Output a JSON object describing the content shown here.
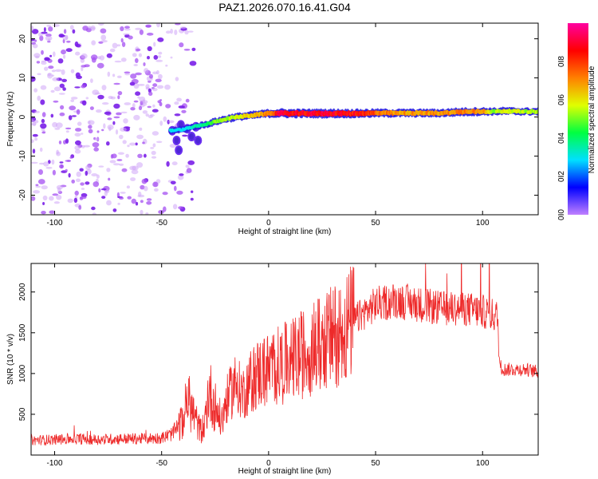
{
  "title": "PAZ1.2026.070.16.41.G04",
  "chart_data": [
    {
      "type": "heatmap",
      "name": "spectrogram",
      "xlabel": "Height of straight line (km)",
      "ylabel": "Frequency (Hz)",
      "xlim": [
        -111,
        126
      ],
      "ylim": [
        -25,
        24
      ],
      "xticks": [
        -100,
        -50,
        0,
        50,
        100
      ],
      "yticks": [
        -20,
        -10,
        0,
        10,
        20
      ],
      "colorbar": {
        "label": "Normalized spectral amplitude",
        "range": [
          0,
          1
        ],
        "ticks": [
          0.0,
          0.2,
          0.4,
          0.6,
          0.8
        ],
        "colormap": [
          "#c080ff",
          "#0000ff",
          "#00e0ff",
          "#00ff40",
          "#e0ff00",
          "#ff8000",
          "#ff0000",
          "#ff00a0"
        ]
      },
      "noise_region_km": [
        -111,
        -35
      ],
      "signal_track": {
        "x": [
          -46,
          -40,
          -35,
          -30,
          -25,
          -20,
          -15,
          -10,
          -5,
          0,
          5,
          10,
          20,
          30,
          40,
          50,
          60,
          70,
          80,
          90,
          100,
          105,
          110,
          120,
          126
        ],
        "freq": [
          -3.5,
          -3.2,
          -2.5,
          -2,
          -1.2,
          -0.5,
          0,
          0.3,
          0.6,
          0.9,
          1,
          0.9,
          0.9,
          0.9,
          0.9,
          1,
          1,
          1,
          1,
          1.3,
          1.4,
          1.4,
          1.5,
          1.4,
          1.4
        ],
        "amp": [
          0.2,
          0.18,
          0.25,
          0.3,
          0.45,
          0.5,
          0.55,
          0.6,
          0.65,
          0.75,
          0.95,
          0.95,
          0.95,
          0.95,
          0.9,
          0.8,
          0.7,
          0.72,
          0.7,
          0.75,
          0.75,
          0.45,
          0.6,
          0.5,
          0.5
        ]
      },
      "grid": false
    },
    {
      "type": "line",
      "name": "snr",
      "xlabel": "Height of straight line (km)",
      "ylabel": "SNR (10 * v/v)",
      "xlim": [
        -111,
        126
      ],
      "ylim": [
        0,
        2350
      ],
      "xticks": [
        -100,
        -50,
        0,
        50,
        100
      ],
      "yticks": [
        500,
        1000,
        1500,
        2000
      ],
      "color": "#ee2a2a",
      "series": [
        {
          "name": "SNR",
          "x": [
            -111,
            -100,
            -90,
            -80,
            -70,
            -60,
            -50,
            -45,
            -40,
            -38,
            -35,
            -32,
            -30,
            -28,
            -25,
            -22,
            -20,
            -17,
            -15,
            -12,
            -10,
            -5,
            0,
            5,
            10,
            20,
            30,
            40,
            50,
            60,
            70,
            80,
            90,
            100,
            107,
            108,
            110,
            120,
            126
          ],
          "values": [
            180,
            190,
            200,
            190,
            200,
            200,
            210,
            260,
            420,
            700,
            500,
            300,
            350,
            800,
            600,
            400,
            650,
            800,
            900,
            750,
            850,
            1000,
            1050,
            1100,
            1150,
            1300,
            1450,
            1650,
            1850,
            1900,
            1850,
            1800,
            1800,
            1760,
            1700,
            1100,
            1050,
            1050,
            1020
          ]
        }
      ],
      "grid": false
    }
  ]
}
